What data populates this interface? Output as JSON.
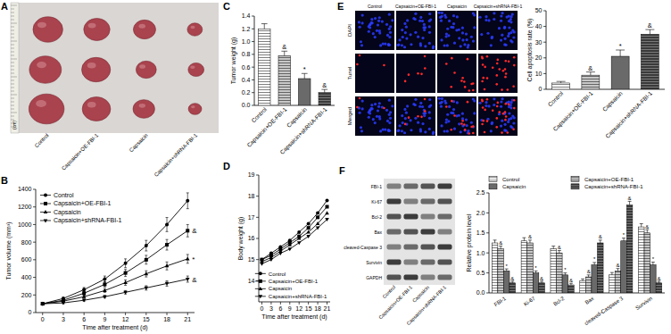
{
  "panel_labels": [
    "A",
    "B",
    "C",
    "D",
    "E",
    "F"
  ],
  "tumor_photo": {
    "ruler_unit": "(cm)",
    "groups": [
      "Control",
      "Capsaicin+OE-FBI-1",
      "Capsaicin",
      "Capsaicin+shRNA-FBI-1"
    ]
  },
  "tunel_staining": {
    "groups": [
      "Control",
      "Capsaicin+OE-FBI-1",
      "Capsaicin",
      "Capsaicin+shRNA-FBI-1"
    ],
    "channels": [
      "DAPI",
      "Tunel",
      "Merged"
    ]
  },
  "western_blot": {
    "proteins": [
      "FBI-1",
      "Ki-67",
      "Bcl-2",
      "Bax",
      "cleaved-Caspase 3",
      "Survivin",
      "GAPDH"
    ],
    "groups": [
      "Control",
      "Capsaicin+OE-FBI-1",
      "Capsaicin",
      "Capsaicin+shRNA-FBI-1"
    ]
  },
  "chart_data": [
    {
      "type": "line",
      "x_label": "Time after treatment (d)",
      "y_label": "Tumor volume (mm³)",
      "x": [
        0,
        3,
        6,
        9,
        12,
        15,
        18,
        21
      ],
      "xlim": [
        -1,
        22
      ],
      "xticks": [
        0,
        3,
        6,
        9,
        12,
        15,
        18,
        21
      ],
      "ylim": [
        0,
        1400
      ],
      "yticks": [
        0,
        200,
        400,
        600,
        800,
        1000,
        1200,
        1400
      ],
      "legend": "upper left",
      "series": [
        {
          "name": "Control",
          "color": "#000000",
          "marker": "circle",
          "values": [
            100,
            160,
            260,
            380,
            560,
            760,
            1000,
            1270
          ],
          "errors": [
            10,
            15,
            25,
            35,
            50,
            60,
            80,
            90
          ]
        },
        {
          "name": "Capsaicin+OE-FBI-1",
          "color": "#000000",
          "marker": "square",
          "values": [
            100,
            140,
            220,
            320,
            450,
            600,
            770,
            930
          ],
          "errors": [
            10,
            12,
            20,
            30,
            40,
            50,
            60,
            70
          ],
          "annotation": "&"
        },
        {
          "name": "Capsaicin",
          "color": "#000000",
          "marker": "triangle-up",
          "values": [
            100,
            130,
            180,
            250,
            340,
            440,
            530,
            610
          ],
          "errors": [
            10,
            12,
            15,
            20,
            30,
            35,
            45,
            50
          ],
          "annotation": "*"
        },
        {
          "name": "Capsaicin+shRNA-FBI-1",
          "color": "#000000",
          "marker": "triangle-down",
          "values": [
            100,
            110,
            140,
            180,
            230,
            280,
            330,
            380
          ],
          "errors": [
            10,
            10,
            12,
            15,
            20,
            25,
            30,
            35
          ],
          "annotation": "&"
        }
      ]
    },
    {
      "type": "bar",
      "y_label": "Tumor weight (g)",
      "categories": [
        "Control",
        "Capsaicin+OE-FBI-1",
        "Capsaicin",
        "Capsaicin+shRNA-FBI-1"
      ],
      "values": [
        1.2,
        0.78,
        0.42,
        0.2
      ],
      "errors": [
        0.08,
        0.07,
        0.08,
        0.05
      ],
      "annotations": [
        null,
        "&",
        "*",
        "&"
      ],
      "colors": [
        "#ffffff",
        "#c8c8c8",
        "#6a6a6a",
        "#3a3a3a"
      ],
      "ylim": [
        0,
        1.4
      ],
      "yticks": [
        {
          "value": 0,
          "label": "0.0"
        },
        0.2,
        0.4,
        0.6,
        0.8,
        {
          "value": 1,
          "label": "1.0"
        },
        1.2,
        1.4
      ]
    },
    {
      "type": "line",
      "x_label": "Time after treatment (d)",
      "y_label": "Body weight (g)",
      "x": [
        0,
        3,
        6,
        9,
        12,
        15,
        18,
        21
      ],
      "xlim": [
        -1,
        22
      ],
      "xticks": [
        0,
        3,
        6,
        9,
        12,
        15,
        18,
        21
      ],
      "ylim": [
        13,
        19
      ],
      "yticks": [
        14,
        15,
        16,
        17,
        18,
        19
      ],
      "legend": "lower right",
      "series": [
        {
          "name": "Control",
          "color": "#000000",
          "marker": "circle",
          "values": [
            15.0,
            15.3,
            15.6,
            15.9,
            16.3,
            16.7,
            17.2,
            17.8
          ]
        },
        {
          "name": "Capsaicin+OE-FBI-1",
          "color": "#000000",
          "marker": "square",
          "values": [
            15.0,
            15.2,
            15.5,
            15.8,
            16.1,
            16.5,
            17.0,
            17.5
          ]
        },
        {
          "name": "Capsaicin",
          "color": "#000000",
          "marker": "triangle-up",
          "values": [
            14.9,
            15.1,
            15.4,
            15.7,
            16.0,
            16.3,
            16.7,
            17.2
          ]
        },
        {
          "name": "Capsaicin+shRNA-FBI-1",
          "color": "#000000",
          "marker": "triangle-down",
          "values": [
            14.8,
            15.0,
            15.3,
            15.5,
            15.8,
            16.1,
            16.5,
            16.9
          ]
        }
      ]
    },
    {
      "type": "bar",
      "y_label": "Cell apoptosis rate (%)",
      "categories": [
        "Control",
        "Capsaicin+OE-FBI-1",
        "Capsaicin",
        "Capsaicin+shRNA-FBI-1"
      ],
      "values": [
        4,
        9,
        21,
        35
      ],
      "errors": [
        1,
        2,
        4,
        3
      ],
      "annotations": [
        null,
        "&",
        "*",
        "&"
      ],
      "colors": [
        "#ffffff",
        "#c8c8c8",
        "#6a6a6a",
        "#3a3a3a"
      ],
      "ylim": [
        0,
        50
      ],
      "yticks": [
        0,
        10,
        20,
        30,
        40,
        50
      ]
    },
    {
      "type": "bar",
      "y_label": "Relative protein level",
      "categories": [
        "FBI-1",
        "Ki-67",
        "Bcl-2",
        "Bax",
        "cleaved-Caspase 3",
        "Survivin"
      ],
      "ylim": [
        0,
        2.5
      ],
      "yticks": [
        {
          "value": 0,
          "label": "0.0"
        },
        0.5,
        {
          "value": 1,
          "label": "1.0"
        },
        1.5,
        {
          "value": 2,
          "label": "2.0"
        },
        2.5
      ],
      "legend": "top",
      "series": [
        {
          "name": "Control",
          "color": "#ffffff",
          "values": [
            1.25,
            1.3,
            1.1,
            0.3,
            0.45,
            1.65
          ],
          "errors": [
            0.07,
            0.08,
            0.07,
            0.05,
            0.06,
            0.08
          ]
        },
        {
          "name": "Capsaicin+OE-FBI-1",
          "color": "#c8c8c8",
          "values": [
            1.1,
            1.25,
            1.0,
            0.4,
            0.55,
            1.5
          ],
          "errors": [
            0.07,
            0.07,
            0.06,
            0.05,
            0.06,
            0.08
          ],
          "annotations": [
            "&",
            "&",
            "&",
            "&",
            "&",
            "&"
          ]
        },
        {
          "name": "Capsaicin",
          "color": "#6a6a6a",
          "values": [
            0.55,
            0.5,
            0.45,
            0.7,
            1.3,
            0.7
          ],
          "errors": [
            0.05,
            0.05,
            0.05,
            0.06,
            0.07,
            0.07
          ],
          "annotations": [
            "*",
            "*",
            "*",
            "*",
            "*",
            "*"
          ]
        },
        {
          "name": "Capsaicin+shRNA-FBI-1",
          "color": "#3a3a3a",
          "values": [
            0.25,
            0.25,
            0.2,
            1.25,
            2.2,
            0.25
          ],
          "errors": [
            0.04,
            0.04,
            0.04,
            0.07,
            0.09,
            0.04
          ],
          "annotations": [
            "&",
            "&",
            "&",
            "&",
            "&",
            "&"
          ]
        }
      ]
    }
  ]
}
